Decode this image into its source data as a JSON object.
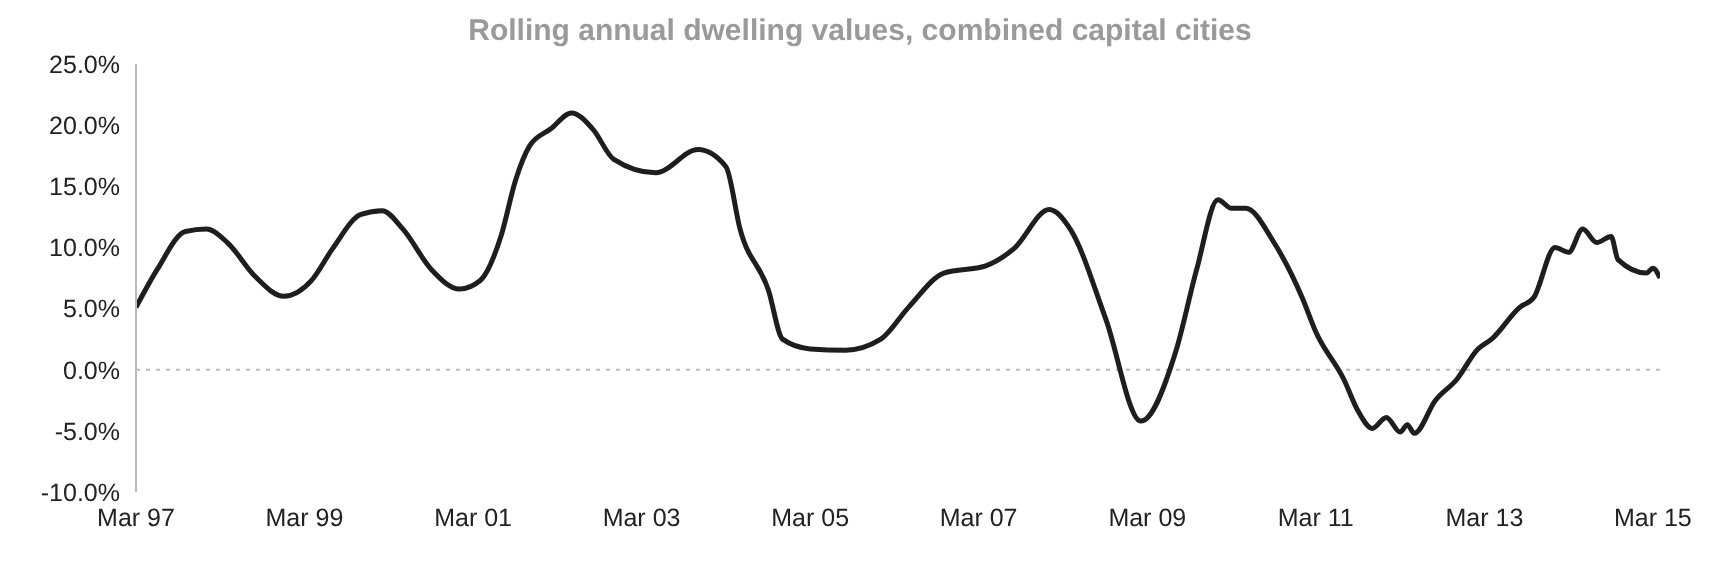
{
  "chart_data": {
    "type": "line",
    "title": "Rolling annual dwelling values, combined capital cities",
    "x": [
      "1997-03",
      "1997-06",
      "1997-10",
      "1998-01",
      "1998-04",
      "1998-08",
      "1998-12",
      "1999-04",
      "1999-07",
      "1999-11",
      "2000-02",
      "2000-05",
      "2000-09",
      "2001-01",
      "2001-04",
      "2001-07",
      "2001-09",
      "2001-11",
      "2002-02",
      "2002-05",
      "2002-08",
      "2002-11",
      "2003-05",
      "2003-11",
      "2004-03",
      "2004-05",
      "2004-09",
      "2004-11",
      "2005-03",
      "2005-08",
      "2006-01",
      "2006-05",
      "2006-10",
      "2007-04",
      "2007-08",
      "2008-01",
      "2008-04",
      "2008-09",
      "2009-02",
      "2009-07",
      "2009-10",
      "2010-01",
      "2010-03",
      "2010-05",
      "2010-09",
      "2011-01",
      "2011-03",
      "2011-07",
      "2011-09",
      "2011-11",
      "2012-01",
      "2012-03",
      "2012-04",
      "2012-05",
      "2012-08",
      "2012-11",
      "2013-02",
      "2013-04",
      "2013-08",
      "2013-10",
      "2014-01",
      "2014-03",
      "2014-05",
      "2014-07",
      "2014-09",
      "2014-10",
      "2015-02",
      "2015-03",
      "2015-04"
    ],
    "series": [
      {
        "color": "#1e1e1e",
        "values": [
          5.1,
          8.2,
          11.3,
          11.5,
          10.4,
          7.6,
          6.0,
          7.3,
          9.9,
          12.7,
          13.0,
          11.5,
          8.2,
          6.6,
          7.3,
          11.0,
          15.5,
          18.3,
          19.7,
          21.0,
          19.7,
          17.2,
          16.1,
          18.0,
          16.6,
          11.5,
          6.5,
          2.5,
          1.7,
          1.6,
          2.5,
          5.1,
          7.9,
          8.5,
          9.9,
          13.1,
          11.5,
          4.2,
          -4.2,
          1.4,
          8.2,
          13.9,
          13.2,
          13.2,
          10.4,
          5.9,
          3.1,
          -0.8,
          -3.4,
          -4.8,
          -3.9,
          -5.1,
          -4.5,
          -5.2,
          -2.5,
          -0.8,
          1.7,
          2.5,
          5.1,
          5.9,
          10.0,
          9.6,
          11.5,
          10.4,
          10.9,
          9.0,
          7.9,
          8.3,
          7.5
        ]
      }
    ],
    "xlim": [
      "1997-03",
      "2015-04"
    ],
    "xticks": [
      {
        "value": "1997-03",
        "label": "Mar 97"
      },
      {
        "value": "1999-03",
        "label": "Mar 99"
      },
      {
        "value": "2001-03",
        "label": "Mar 01"
      },
      {
        "value": "2003-03",
        "label": "Mar 03"
      },
      {
        "value": "2005-03",
        "label": "Mar 05"
      },
      {
        "value": "2007-03",
        "label": "Mar 07"
      },
      {
        "value": "2009-03",
        "label": "Mar 09"
      },
      {
        "value": "2011-03",
        "label": "Mar 11"
      },
      {
        "value": "2013-03",
        "label": "Mar 13"
      },
      {
        "value": "2015-03",
        "label": "Mar 15"
      }
    ],
    "ylim": [
      -10,
      25
    ],
    "yticks": [
      {
        "value": -10,
        "label": "-10.0%"
      },
      {
        "value": -5,
        "label": "-5.0%"
      },
      {
        "value": 0,
        "label": "0.0%"
      },
      {
        "value": 5,
        "label": "5.0%"
      },
      {
        "value": 10,
        "label": "10.0%"
      },
      {
        "value": 15,
        "label": "15.0%"
      },
      {
        "value": 20,
        "label": "20.0%"
      },
      {
        "value": 25,
        "label": "25.0%"
      }
    ],
    "ref_lines": [
      {
        "axis": "y",
        "value": 0,
        "color": "#bbbbbb",
        "line_style": "dotted"
      }
    ],
    "grid": false,
    "legend": false,
    "marker": "none",
    "line_style": "solid"
  }
}
